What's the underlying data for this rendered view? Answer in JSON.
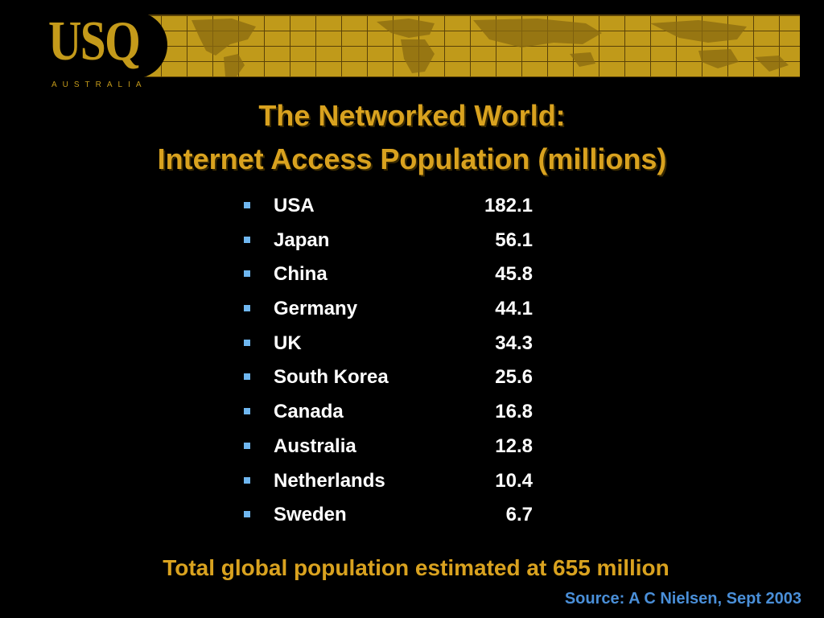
{
  "logo": {
    "main": "USQ",
    "sub": "AUSTRALIA"
  },
  "title": {
    "line1": "The Networked World:",
    "line2": "Internet Access Population (millions)"
  },
  "items": [
    {
      "country": "USA",
      "value": "182.1"
    },
    {
      "country": "Japan",
      "value": "56.1"
    },
    {
      "country": "China",
      "value": "45.8"
    },
    {
      "country": "Germany",
      "value": "44.1"
    },
    {
      "country": "UK",
      "value": "34.3"
    },
    {
      "country": "South Korea",
      "value": "25.6"
    },
    {
      "country": "Canada",
      "value": "16.8"
    },
    {
      "country": "Australia",
      "value": "12.8"
    },
    {
      "country": "Netherlands",
      "value": "10.4"
    },
    {
      "country": "Sweden",
      "value": "6.7"
    }
  ],
  "total": "Total global population estimated at 655 million",
  "source": "Source:  A C Nielsen, Sept 2003",
  "colors": {
    "title": "#d9a21f",
    "bullet": "#6fb7f0",
    "source": "#4a8fd8",
    "banner": "#c09a1a"
  }
}
